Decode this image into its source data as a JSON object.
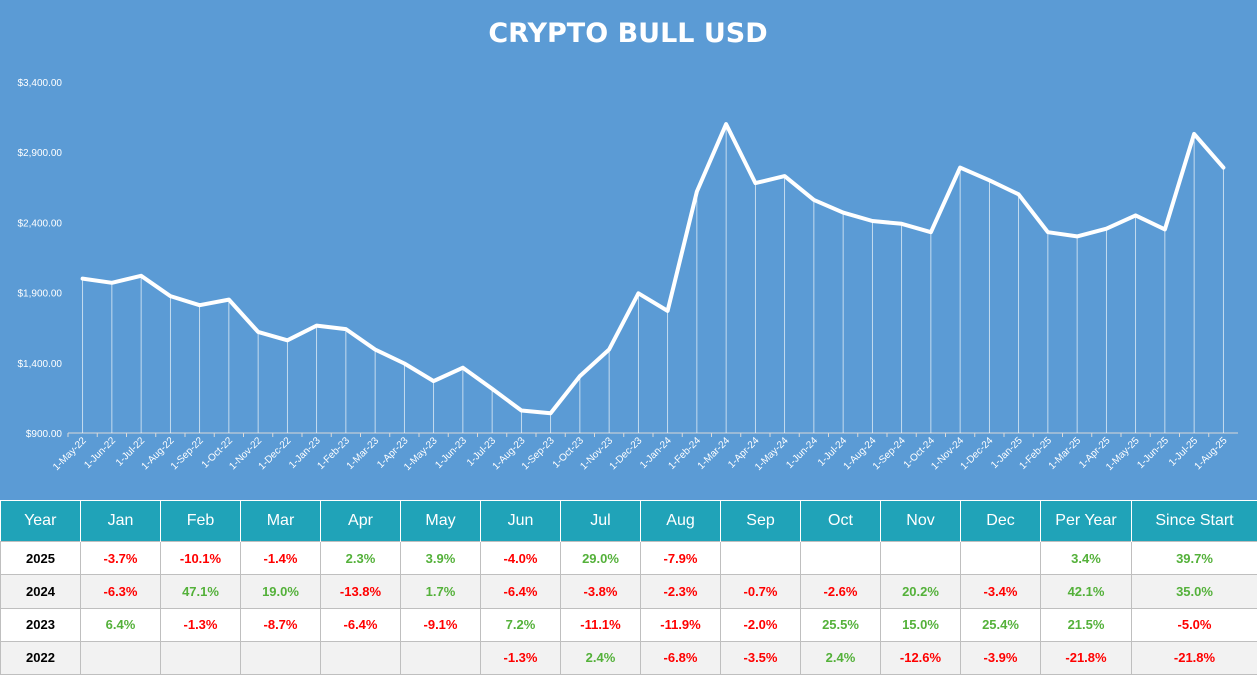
{
  "chart_data": {
    "type": "line",
    "title": "CRYPTO BULL USD",
    "xlabel": "",
    "ylabel": "",
    "ylim": [
      900,
      3400
    ],
    "yticks": [
      900,
      1400,
      1900,
      2400,
      2900,
      3400
    ],
    "ytick_labels": [
      "$900.00",
      "$1,400.00",
      "$1,900.00",
      "$2,400.00",
      "$2,900.00",
      "$3,400.00"
    ],
    "grid": false,
    "legend": "none",
    "colors": {
      "background": "#5b9bd5",
      "line": "#ffffff",
      "drop_lines": "#ffffff"
    },
    "categories": [
      "1-May-22",
      "1-Jun-22",
      "1-Jul-22",
      "1-Aug-22",
      "1-Sep-22",
      "1-Oct-22",
      "1-Nov-22",
      "1-Dec-22",
      "1-Jan-23",
      "1-Feb-23",
      "1-Mar-23",
      "1-Apr-23",
      "1-May-23",
      "1-Jun-23",
      "1-Jul-23",
      "1-Aug-23",
      "1-Sep-23",
      "1-Oct-23",
      "1-Nov-23",
      "1-Dec-23",
      "1-Jan-24",
      "1-Feb-24",
      "1-Mar-24",
      "1-Apr-24",
      "1-May-24",
      "1-Jun-24",
      "1-Jul-24",
      "1-Aug-24",
      "1-Sep-24",
      "1-Oct-24",
      "1-Nov-24",
      "1-Dec-24",
      "1-Jan-25",
      "1-Feb-25",
      "1-Mar-25",
      "1-Apr-25",
      "1-May-25",
      "1-Jun-25",
      "1-Jul-25",
      "1-Aug-25"
    ],
    "series": [
      {
        "values": [
          2000,
          1970,
          2020,
          1875,
          1810,
          1850,
          1620,
          1560,
          1665,
          1640,
          1495,
          1395,
          1270,
          1365,
          1215,
          1060,
          1040,
          1305,
          1495,
          1895,
          1770,
          2620,
          3100,
          2680,
          2730,
          2560,
          2470,
          2410,
          2390,
          2330,
          2790,
          2700,
          2600,
          2330,
          2300,
          2355,
          2450,
          2350,
          3030,
          2790
        ]
      }
    ]
  },
  "table": {
    "headers": [
      "Year",
      "Jan",
      "Feb",
      "Mar",
      "Apr",
      "May",
      "Jun",
      "Jul",
      "Aug",
      "Sep",
      "Oct",
      "Nov",
      "Dec",
      "Per Year",
      "Since Start"
    ],
    "rows": [
      {
        "year": "2025",
        "cells": [
          "-3.7%",
          "-10.1%",
          "-1.4%",
          "2.3%",
          "3.9%",
          "-4.0%",
          "29.0%",
          "-7.9%",
          "",
          "",
          "",
          "",
          "3.4%",
          "39.7%"
        ]
      },
      {
        "year": "2024",
        "cells": [
          "-6.3%",
          "47.1%",
          "19.0%",
          "-13.8%",
          "1.7%",
          "-6.4%",
          "-3.8%",
          "-2.3%",
          "-0.7%",
          "-2.6%",
          "20.2%",
          "-3.4%",
          "42.1%",
          "35.0%"
        ]
      },
      {
        "year": "2023",
        "cells": [
          "6.4%",
          "-1.3%",
          "-8.7%",
          "-6.4%",
          "-9.1%",
          "7.2%",
          "-11.1%",
          "-11.9%",
          "-2.0%",
          "25.5%",
          "15.0%",
          "25.4%",
          "21.5%",
          "-5.0%"
        ]
      },
      {
        "year": "2022",
        "cells": [
          "",
          "",
          "",
          "",
          "",
          "-1.3%",
          "2.4%",
          "-6.8%",
          "-3.5%",
          "2.4%",
          "-12.6%",
          "-3.9%",
          "-21.8%",
          "-21.8%"
        ]
      }
    ],
    "colors": {
      "header_bg": "#20a3b8",
      "positive": "#54b13a",
      "negative": "#ff0000"
    }
  }
}
